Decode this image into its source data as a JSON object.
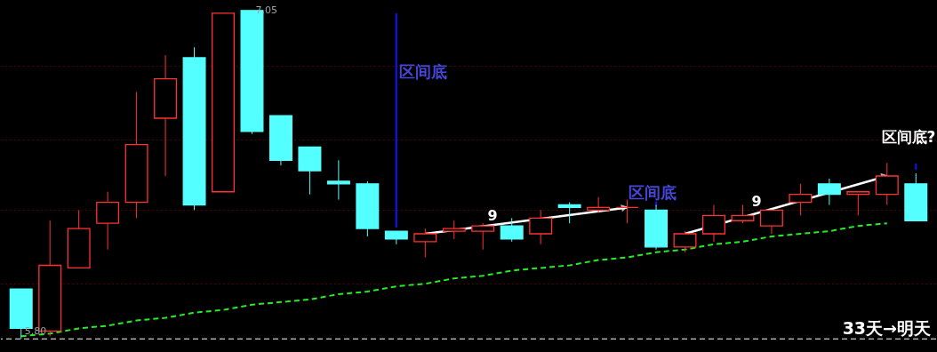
{
  "chart_data": {
    "type": "candlestick",
    "categories": [
      null,
      null,
      null,
      null,
      null,
      null,
      null,
      null,
      null,
      null,
      null,
      null,
      null,
      null,
      null,
      null,
      null,
      null,
      null,
      null,
      null,
      null,
      null,
      null,
      null,
      null,
      null,
      null,
      null,
      null,
      null,
      null
    ],
    "ohlc": [
      [
        5.99,
        5.99,
        5.8,
        5.84
      ],
      [
        5.83,
        6.25,
        5.81,
        6.08
      ],
      [
        6.07,
        6.29,
        6.07,
        6.22
      ],
      [
        6.24,
        6.36,
        6.14,
        6.32
      ],
      [
        6.32,
        6.74,
        6.26,
        6.54
      ],
      [
        6.64,
        6.88,
        6.42,
        6.79
      ],
      [
        6.87,
        6.91,
        6.29,
        6.31
      ],
      [
        6.36,
        7.04,
        6.36,
        7.04
      ],
      [
        7.05,
        7.05,
        6.58,
        6.59
      ],
      [
        6.65,
        6.65,
        6.46,
        6.48
      ],
      [
        6.53,
        6.53,
        6.35,
        6.44
      ],
      [
        6.4,
        6.48,
        6.33,
        6.39
      ],
      [
        6.39,
        6.4,
        6.19,
        6.22
      ],
      [
        6.21,
        6.21,
        6.16,
        6.18
      ],
      [
        6.17,
        6.22,
        6.11,
        6.2
      ],
      [
        6.21,
        6.25,
        6.18,
        6.22
      ],
      [
        6.21,
        6.24,
        6.14,
        6.23
      ],
      [
        6.23,
        6.26,
        6.17,
        6.18
      ],
      [
        6.2,
        6.29,
        6.16,
        6.26
      ],
      [
        6.31,
        6.32,
        6.24,
        6.3
      ],
      [
        6.29,
        6.34,
        6.28,
        6.3
      ],
      [
        6.3,
        6.33,
        6.24,
        6.3
      ],
      [
        6.29,
        6.31,
        6.14,
        6.15
      ],
      [
        6.15,
        6.21,
        6.13,
        6.2
      ],
      [
        6.2,
        6.31,
        6.17,
        6.27
      ],
      [
        6.25,
        6.31,
        6.24,
        6.27
      ],
      [
        6.23,
        6.29,
        6.2,
        6.29
      ],
      [
        6.32,
        6.39,
        6.27,
        6.35
      ],
      [
        6.39,
        6.41,
        6.31,
        6.35
      ],
      [
        6.35,
        6.36,
        6.27,
        6.36
      ],
      [
        6.35,
        6.47,
        6.31,
        6.42
      ],
      [
        6.39,
        6.43,
        6.25,
        6.25
      ]
    ],
    "colors": [
      "#54ffff",
      "#ff3232",
      "#ff3232",
      "#ff3232",
      "#ff3232",
      "#ff3232",
      "#54ffff",
      "#ff3232",
      "#54ffff",
      "#54ffff",
      "#54ffff",
      "#54ffff",
      "#54ffff",
      "#54ffff",
      "#ff3232",
      "#ff3232",
      "#ff3232",
      "#54ffff",
      "#ff3232",
      "#54ffff",
      "#ff3232",
      "#ff3232",
      "#54ffff",
      "#ff3232",
      "#ff3232",
      "#ff3232",
      "#ff3232",
      "#ff3232",
      "#54ffff",
      "#ff3232",
      "#ff3232",
      "#54ffff"
    ],
    "series": [
      {
        "type": "line",
        "color": "#22ee22",
        "line_style": "dashed",
        "values": [
          5.81,
          5.82,
          5.84,
          5.85,
          5.87,
          5.88,
          5.9,
          5.91,
          5.93,
          5.94,
          5.95,
          5.97,
          5.98,
          6.0,
          6.01,
          6.03,
          6.04,
          6.06,
          6.07,
          6.08,
          6.1,
          6.11,
          6.13,
          6.14,
          6.16,
          6.17,
          6.19,
          6.2,
          6.21,
          6.23,
          6.24,
          null
        ]
      }
    ],
    "ylim": [
      5.75,
      7.09
    ],
    "yticks": [
      {
        "value": 6.01,
        "label": null
      },
      {
        "value": 6.29,
        "label": null
      },
      {
        "value": 6.56,
        "label": null
      },
      {
        "value": 6.84,
        "label": null
      }
    ],
    "grid": "y",
    "tick_labels": false,
    "ref_lines": [
      {
        "axis": "y",
        "value": 5.8,
        "color": "#ffffff",
        "line_style": "dashed"
      }
    ],
    "annotations": [
      {
        "text": "7.05",
        "y": 7.05
      },
      {
        "text": "5.80",
        "y": 5.8
      },
      "区间底",
      "9",
      "区间底",
      "9",
      "区间底?",
      "33天→明天"
    ]
  }
}
